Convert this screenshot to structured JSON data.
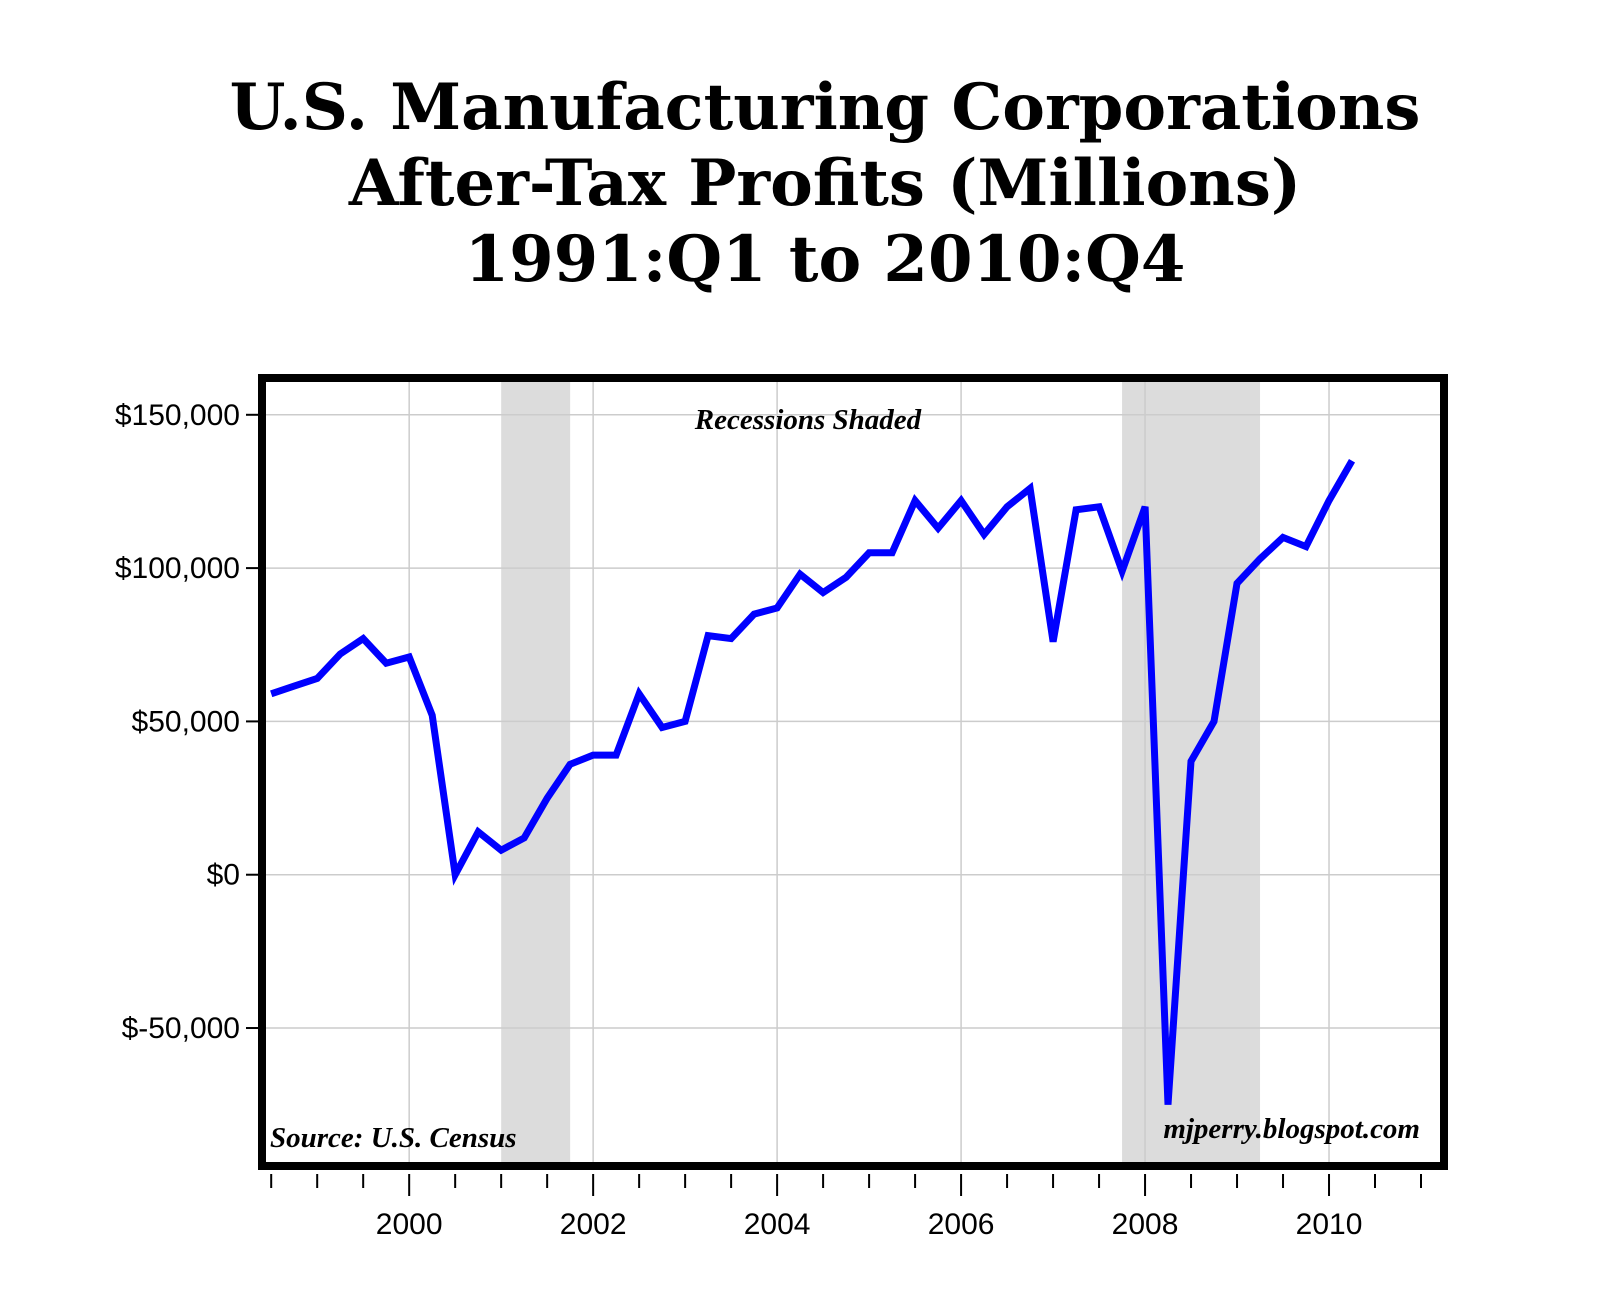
{
  "chart_data": {
    "type": "line",
    "title_lines": [
      "U.S. Manufacturing Corporations",
      "After-Tax Profits (Millions)",
      "1991:Q1 to 2010:Q4"
    ],
    "annotation_recessions": "Recessions Shaded",
    "source": "Source: U.S. Census",
    "credit": "mjperry.blogspot.com",
    "xlim": [
      1998.4,
      2011.25
    ],
    "ylim": [
      -95000,
      162000
    ],
    "yticks": [
      150000,
      100000,
      50000,
      0,
      -50000
    ],
    "ytick_labels": [
      "$150,000",
      "$100,000",
      "$50,000",
      "$0",
      "$-50,000"
    ],
    "xticks_major": [
      2000,
      2002,
      2004,
      2006,
      2008,
      2010
    ],
    "xtick_labels": [
      "2000",
      "2002",
      "2004",
      "2006",
      "2008",
      "2010"
    ],
    "recessions": [
      [
        2001.0,
        2001.75
      ],
      [
        2007.75,
        2009.25
      ]
    ],
    "line_color": "#0000ff",
    "recession_color": "#dcdcdc",
    "grid_color": "#cccccc",
    "series": [
      {
        "name": "After-Tax Profits",
        "x": [
          1998.5,
          1998.75,
          1999.0,
          1999.25,
          1999.5,
          1999.75,
          2000.0,
          2000.25,
          2000.5,
          2000.75,
          2001.0,
          2001.25,
          2001.5,
          2001.75,
          2002.0,
          2002.25,
          2002.5,
          2002.75,
          2003.0,
          2003.25,
          2003.5,
          2003.75,
          2004.0,
          2004.25,
          2004.5,
          2004.75,
          2005.0,
          2005.25,
          2005.5,
          2005.75,
          2006.0,
          2006.25,
          2006.5,
          2006.75,
          2007.0,
          2007.25,
          2007.5,
          2007.75,
          2008.0,
          2008.25,
          2008.5,
          2008.75,
          2009.0,
          2009.25,
          2009.5,
          2009.75,
          2010.0,
          2010.25,
          2010.5,
          2010.75
        ],
        "values": [
          59000,
          61500,
          64000,
          72000,
          77000,
          69000,
          71000,
          52000,
          0,
          14000,
          8000,
          12000,
          25000,
          36000,
          39000,
          39000,
          59000,
          48000,
          50000,
          78000,
          77000,
          85000,
          87000,
          98000,
          92000,
          97000,
          105000,
          105000,
          122000,
          113000,
          122000,
          111000,
          120000,
          126000,
          76000,
          119000,
          120000,
          99000,
          120000,
          -75000,
          37000,
          50000,
          95000,
          103000,
          110000,
          107000,
          122000,
          135000,
          null,
          null
        ]
      }
    ]
  }
}
